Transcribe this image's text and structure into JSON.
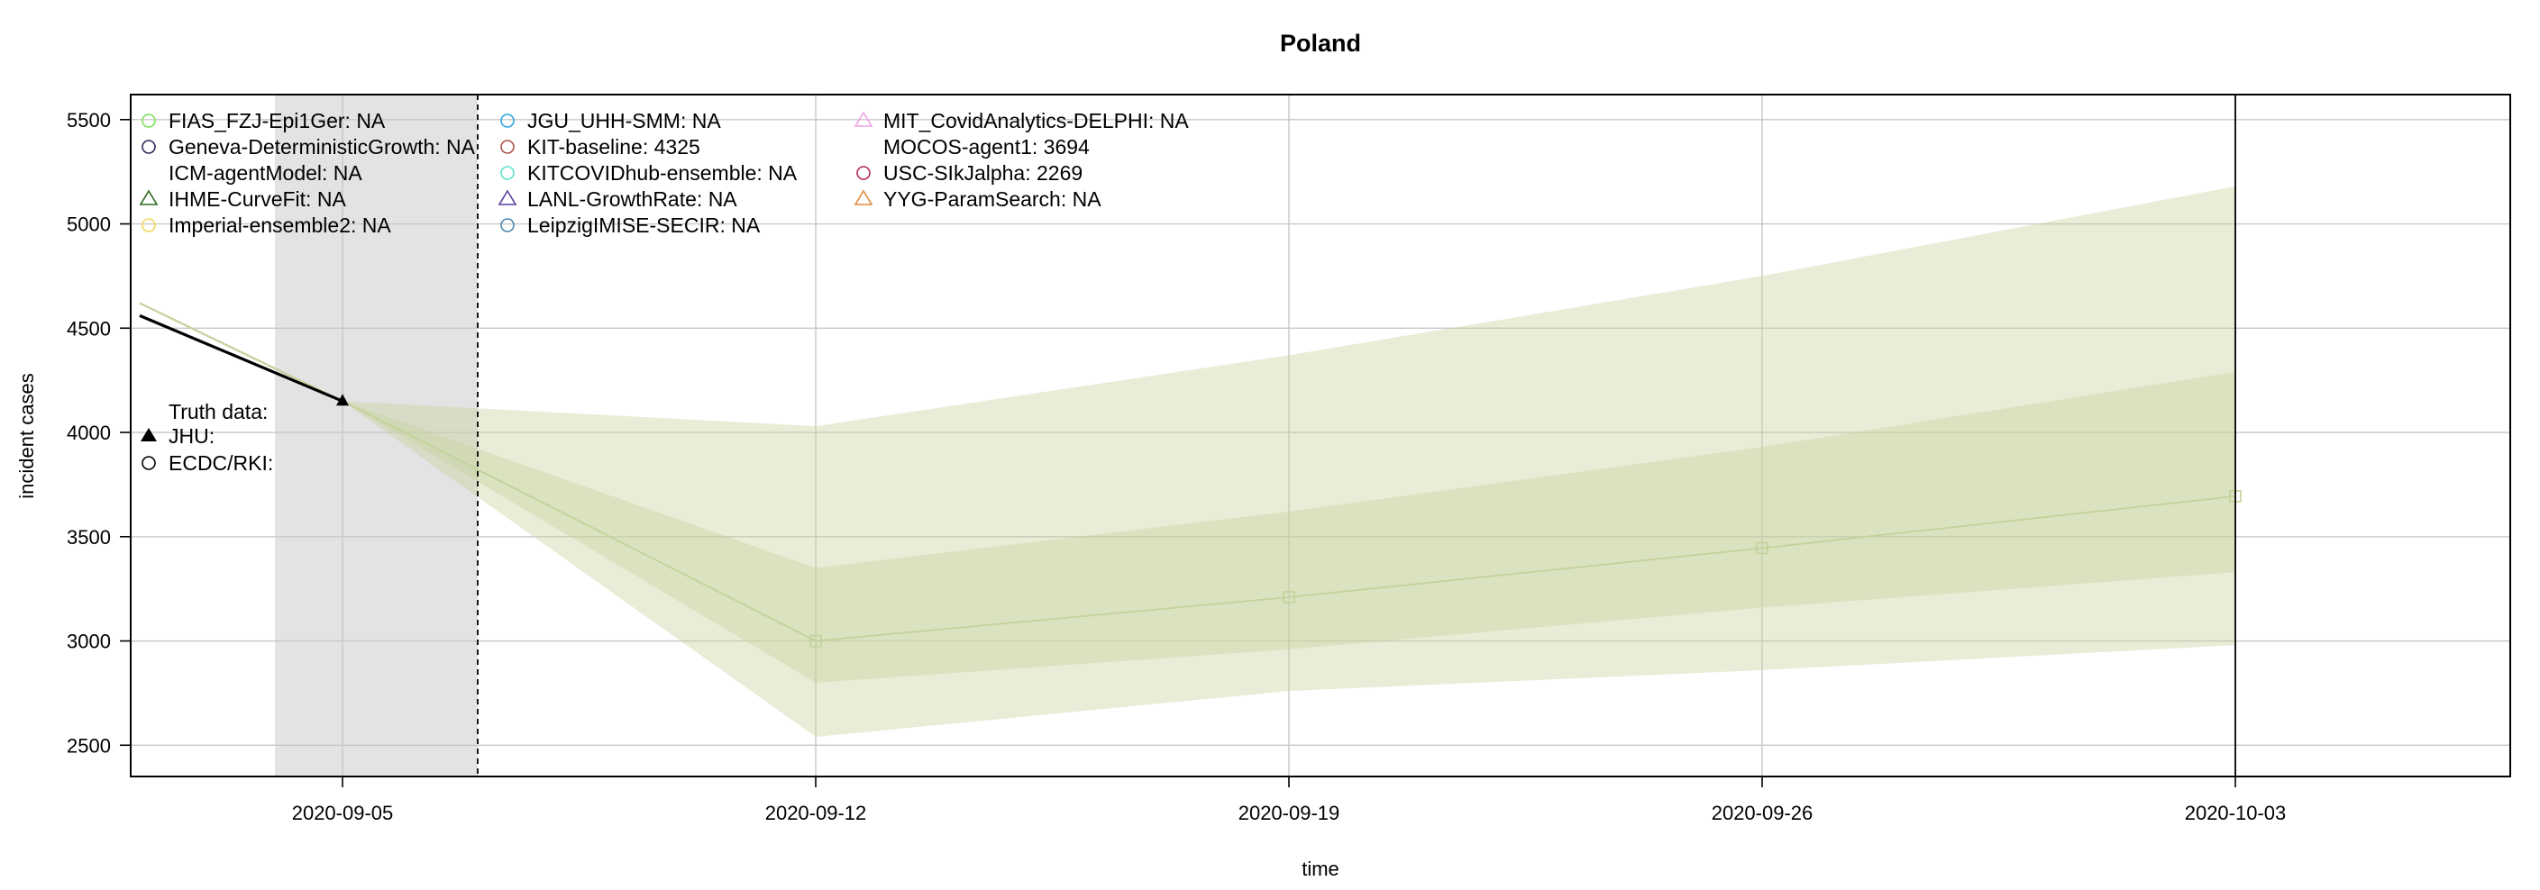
{
  "chart_data": {
    "type": "line",
    "title": "Poland",
    "xlabel": "time",
    "ylabel": "incident cases",
    "x_tick_labels": [
      "2020-09-05",
      "2020-09-12",
      "2020-09-19",
      "2020-09-26",
      "2020-10-03"
    ],
    "y_ticks": [
      2500,
      3000,
      3500,
      4000,
      4500,
      5000,
      5500
    ],
    "ylim": [
      2350,
      5620
    ],
    "grid": true,
    "forecast_date": "2020-09-07",
    "target_end_date": "2020-10-03",
    "truth_shaded_range": [
      "2020-09-04",
      "2020-09-07"
    ],
    "truth": {
      "name": "JHU",
      "x": [
        "2020-09-02",
        "2020-09-05"
      ],
      "y": [
        4560,
        4150
      ]
    },
    "forecast": {
      "model": "MOCOS-agent1",
      "color": "#c5d19a",
      "x": [
        "2020-09-05",
        "2020-09-12",
        "2020-09-19",
        "2020-09-26",
        "2020-10-03"
      ],
      "median": [
        4150,
        3000,
        3210,
        3445,
        3694
      ],
      "interval_50_lower": [
        4150,
        2800,
        2960,
        3160,
        3330
      ],
      "interval_50_upper": [
        4150,
        3350,
        3620,
        3930,
        4290
      ],
      "interval_95_lower": [
        4150,
        2540,
        2760,
        2860,
        2980
      ],
      "interval_95_upper": [
        4150,
        4030,
        4370,
        4750,
        5180
      ],
      "previous_x": [
        "2020-09-02",
        "2020-09-05"
      ],
      "previous_y": [
        4620,
        4150
      ]
    },
    "legend": {
      "columns": [
        [
          {
            "label": "FIAS_FZJ-Epi1Ger: NA",
            "color": "#7be05a",
            "marker": "circle"
          },
          {
            "label": "Geneva-DeterministicGrowth: NA",
            "color": "#2a2a5a",
            "marker": "circle"
          },
          {
            "label": "ICM-agentModel: NA",
            "color": "",
            "marker": "none"
          },
          {
            "label": "IHME-CurveFit: NA",
            "color": "#2f6b1f",
            "marker": "triangle"
          },
          {
            "label": "Imperial-ensemble2: NA",
            "color": "#f2d75a",
            "marker": "circle"
          }
        ],
        [
          {
            "label": "JGU_UHH-SMM: NA",
            "color": "#2ea3e0",
            "marker": "circle"
          },
          {
            "label": "KIT-baseline: 4325",
            "color": "#b0524a",
            "marker": "circle"
          },
          {
            "label": "KITCOVIDhub-ensemble: NA",
            "color": "#5fe0d0",
            "marker": "circle"
          },
          {
            "label": "LANL-GrowthRate: NA",
            "color": "#5a3fa0",
            "marker": "triangle"
          },
          {
            "label": "LeipzigIMISE-SECIR: NA",
            "color": "#4a8ab0",
            "marker": "circle"
          }
        ],
        [
          {
            "label": "MIT_CovidAnalytics-DELPHI: NA",
            "color": "#f0a0e8",
            "marker": "triangle"
          },
          {
            "label": "MOCOS-agent1: 3694",
            "color": "",
            "marker": "none"
          },
          {
            "label": "USC-SIkJalpha: 2269",
            "color": "#b02a5a",
            "marker": "circle"
          },
          {
            "label": "YYG-ParamSearch: NA",
            "color": "#e08a3a",
            "marker": "triangle"
          }
        ]
      ],
      "truth_header": "Truth data:",
      "truth_items": [
        {
          "label": "JHU:",
          "marker": "filled-triangle"
        },
        {
          "label": "ECDC/RKI:",
          "marker": "circle"
        }
      ]
    }
  }
}
